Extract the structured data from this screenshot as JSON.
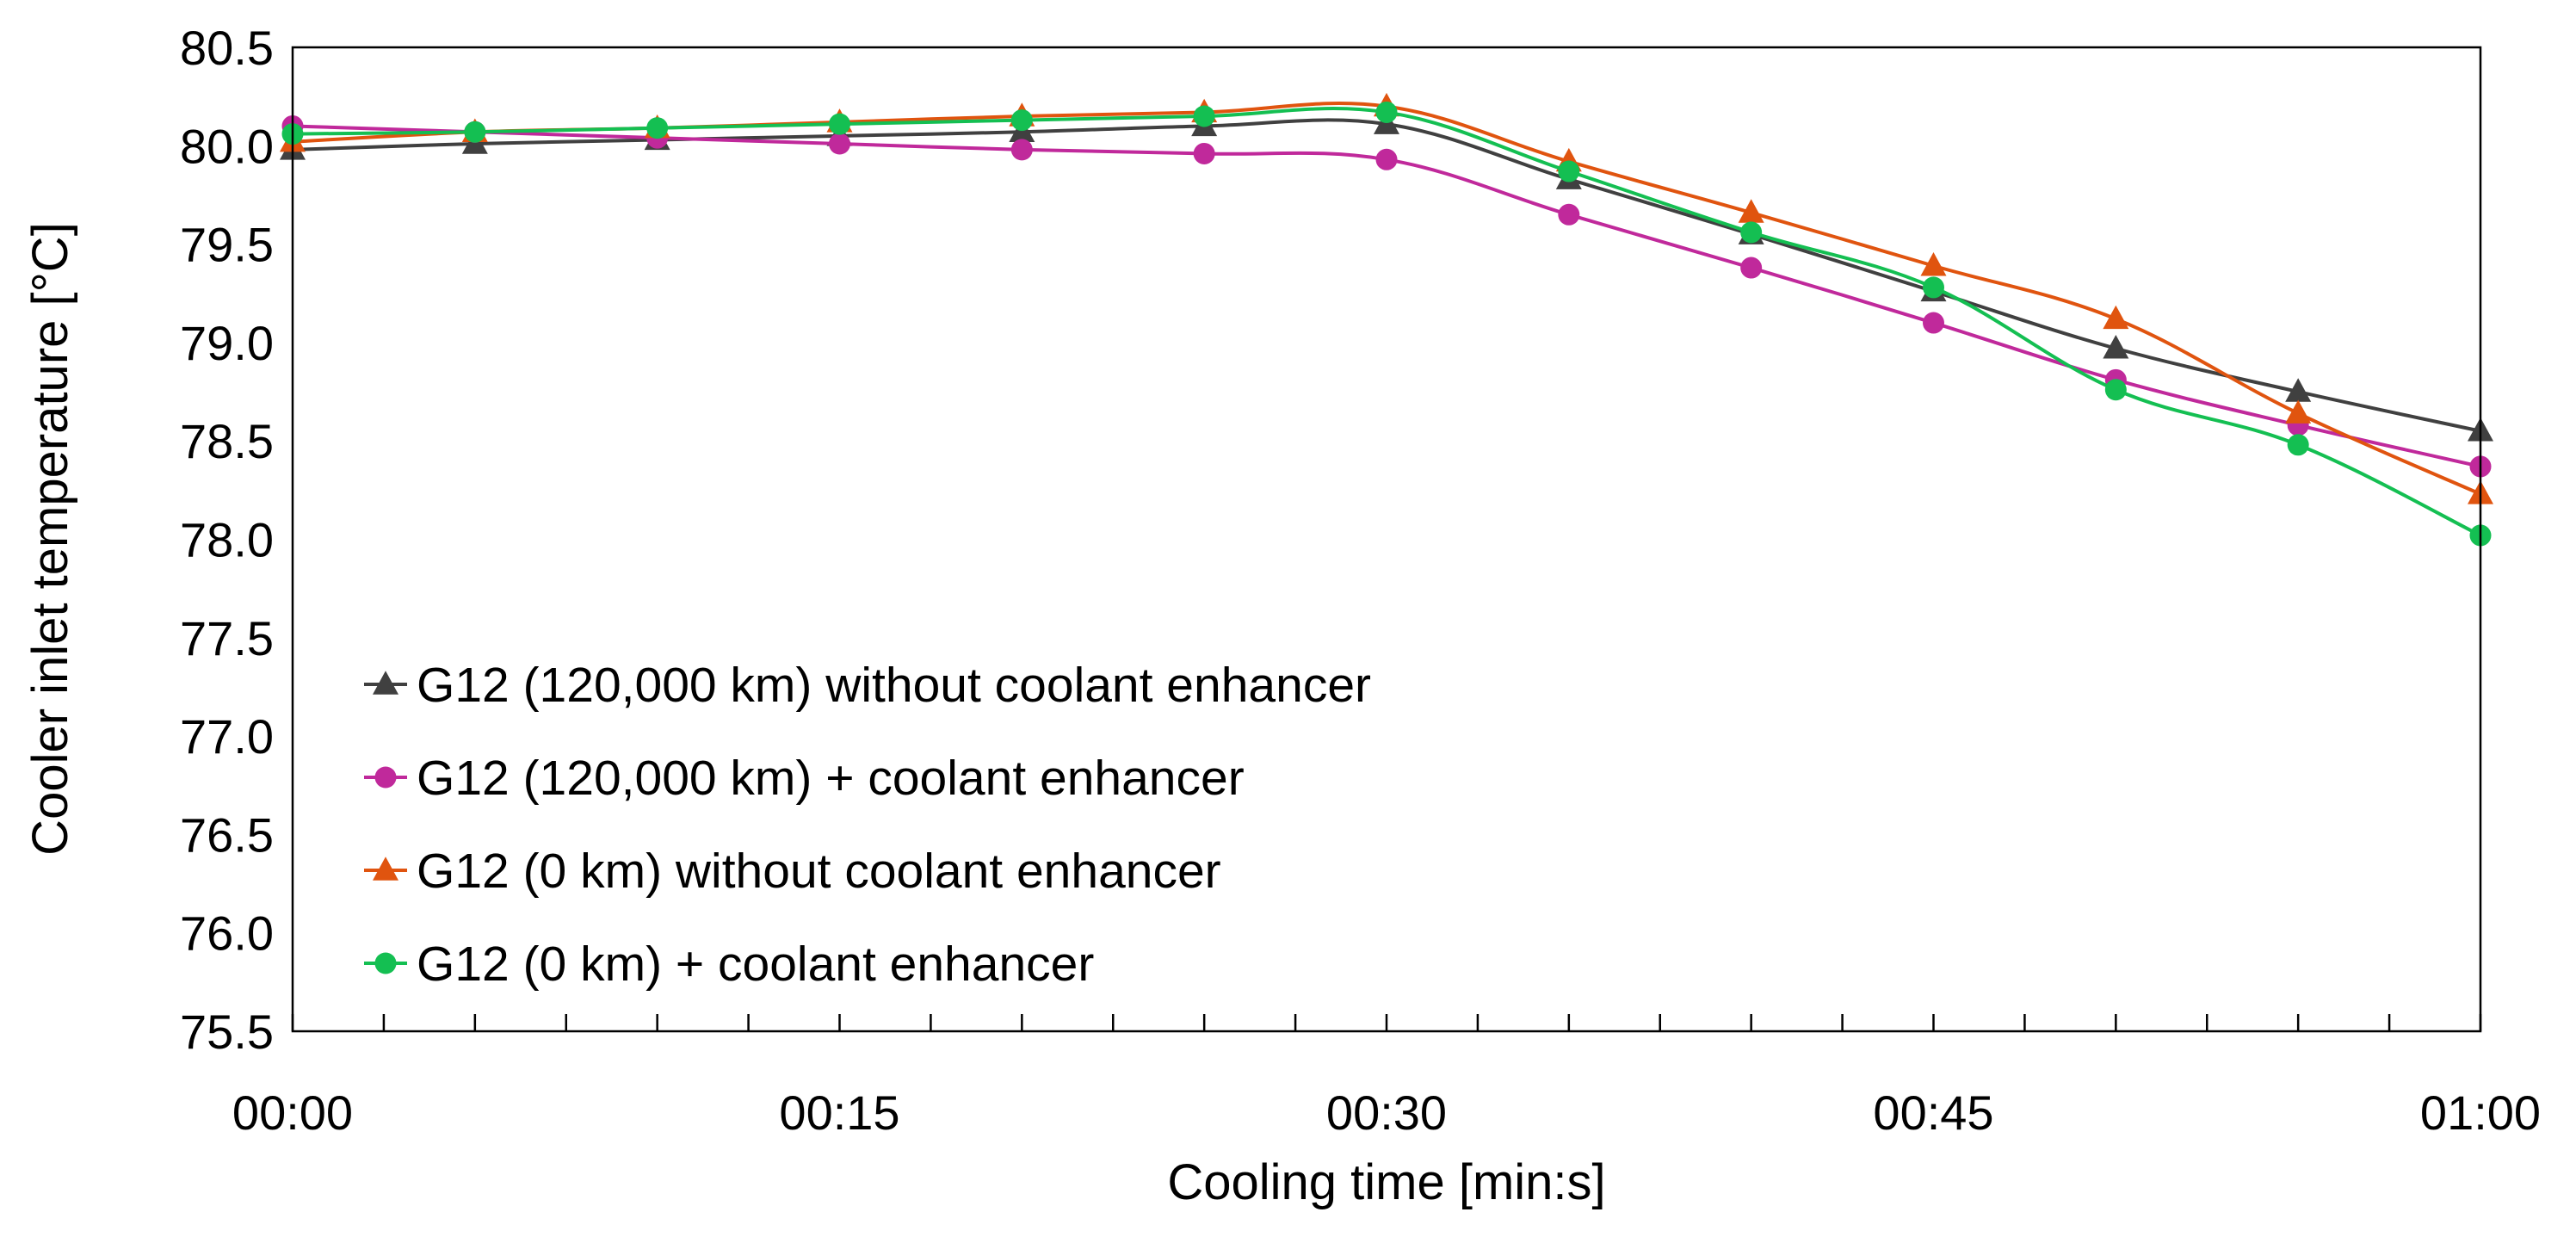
{
  "chart_data": {
    "type": "line",
    "title": "",
    "xlabel": "Cooling time [min:s]",
    "ylabel": "Cooler inlet temperature [°C]",
    "x_seconds": [
      0,
      5,
      10,
      15,
      20,
      25,
      30,
      35,
      40,
      45,
      50,
      55,
      60
    ],
    "xlim": [
      0,
      60
    ],
    "ylim": [
      75.5,
      80.5
    ],
    "x_tick_labels": [
      "00:00",
      "00:15",
      "00:30",
      "00:45",
      "01:00"
    ],
    "y_tick_labels": [
      "75.5",
      "76.0",
      "76.5",
      "77.0",
      "77.5",
      "78.0",
      "78.5",
      "79.0",
      "79.5",
      "80.0",
      "80.5"
    ],
    "legend_position": "bottom-left",
    "grid": false,
    "series": [
      {
        "name": "G12 (120,000 km) without coolant enhancer",
        "color": "#404040",
        "marker": "triangle",
        "values": [
          79.98,
          80.01,
          80.03,
          80.05,
          80.07,
          80.1,
          80.11,
          79.83,
          79.55,
          79.26,
          78.97,
          78.75,
          78.55
        ]
      },
      {
        "name": "G12 (120,000 km) + coolant enhancer",
        "color": "#c0299b",
        "marker": "circle",
        "values": [
          80.1,
          80.07,
          80.04,
          80.01,
          79.98,
          79.96,
          79.93,
          79.65,
          79.38,
          79.1,
          78.81,
          78.58,
          78.37
        ]
      },
      {
        "name": "G12 (0 km) without coolant enhancer",
        "color": "#e0540f",
        "marker": "triangle",
        "values": [
          80.02,
          80.07,
          80.09,
          80.12,
          80.15,
          80.17,
          80.2,
          79.92,
          79.66,
          79.39,
          79.12,
          78.64,
          78.23
        ]
      },
      {
        "name": "G12 (0 km) + coolant enhancer",
        "color": "#14bf52",
        "marker": "circle",
        "values": [
          80.06,
          80.07,
          80.09,
          80.11,
          80.13,
          80.15,
          80.17,
          79.87,
          79.56,
          79.28,
          78.76,
          78.48,
          78.02
        ]
      }
    ]
  }
}
